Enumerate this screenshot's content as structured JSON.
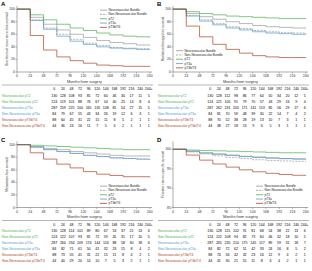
{
  "chart_data": [
    {
      "type": "step",
      "title": "A",
      "xlabel": "Months from surgery",
      "ylabel": "Biochemical recurrence-free survival",
      "x": [
        0,
        24,
        48,
        72,
        96,
        120,
        144,
        168,
        192,
        216,
        240
      ],
      "xlim": [
        0,
        244
      ],
      "xticks": [
        0,
        24,
        48,
        72,
        96,
        120,
        144,
        168,
        192,
        216,
        240
      ],
      "ylim": [
        0,
        105
      ],
      "yticks": [
        0,
        20,
        40,
        60,
        80,
        100
      ],
      "grid": false,
      "legend": "upper right",
      "series": [
        {
          "name": "Neurovascular Bundle",
          "color": "#999999",
          "line_style": "solid",
          "values": [
            100,
            87,
            76,
            67,
            60,
            55,
            50,
            47,
            45,
            43,
            42
          ]
        },
        {
          "name": "Non-Neurovascular Bundle",
          "color": "#999999",
          "line_style": "dashed",
          "values": [
            100,
            83,
            70,
            60,
            52,
            46,
            42,
            39,
            38,
            37,
            36
          ]
        },
        {
          "name": "pT2",
          "color": "#4CAF50",
          "line_style": "solid",
          "values": [
            100,
            91,
            83,
            76,
            70,
            66,
            62,
            59,
            57,
            56,
            55
          ]
        },
        {
          "name": "pT3a",
          "color": "#5599CC",
          "line_style": "solid",
          "values": [
            100,
            82,
            68,
            57,
            49,
            44,
            40,
            38,
            37,
            36,
            35
          ]
        },
        {
          "name": "pT3b/T4",
          "color": "#AA4422",
          "line_style": "solid",
          "values": [
            100,
            58,
            35,
            24,
            18,
            14,
            11,
            10,
            9,
            9,
            8
          ]
        }
      ],
      "risk_table": {
        "columns": [
          "0",
          "24",
          "48",
          "72",
          "96",
          "120",
          "144",
          "168",
          "192",
          "216",
          "240",
          "244+"
        ],
        "rows": [
          {
            "label": "Neurovascular pT2",
            "color": "#4CAF50",
            "values": [
              130,
              128,
              108,
              93,
              81,
              72,
              60,
              46,
              30,
              17,
              11,
              5
            ]
          },
          {
            "label": "Non-Neurovascular pT2",
            "color": "#4CAF50",
            "values": [
              124,
              119,
              101,
              88,
              76,
              67,
              54,
              40,
              25,
              14,
              8,
              4
            ]
          },
          {
            "label": "Neurovascular pT3a",
            "color": "#5599CC",
            "values": [
              287,
              259,
              225,
              200,
              165,
              135,
              108,
              81,
              54,
              27,
              15,
              5
            ]
          },
          {
            "label": "Non-Neurovascular pT3a",
            "color": "#5599CC",
            "values": [
              84,
              79,
              67,
              55,
              43,
              34,
              26,
              19,
              12,
              6,
              3,
              1
            ]
          },
          {
            "label": "Neurovascular pT3b/T4",
            "color": "#AA4422",
            "values": [
              88,
              64,
              45,
              31,
              22,
              15,
              11,
              8,
              5,
              2,
              1,
              1
            ]
          },
          {
            "label": "Non-Neurovascular pT3b/T4",
            "color": "#AA4422",
            "values": [
              44,
              36,
              24,
              16,
              11,
              7,
              5,
              4,
              2,
              1,
              1,
              1
            ]
          }
        ]
      }
    },
    {
      "type": "step",
      "title": "B",
      "xlabel": "Months from surgery",
      "ylabel": "Radiation therapy-free survival",
      "x": [
        0,
        24,
        48,
        72,
        96,
        120,
        144,
        168,
        192,
        216,
        240
      ],
      "xlim": [
        0,
        244
      ],
      "xticks": [
        0,
        24,
        48,
        72,
        96,
        120,
        144,
        168,
        192,
        216,
        240
      ],
      "ylim": [
        0,
        105
      ],
      "yticks": [
        0,
        20,
        40,
        60,
        80,
        100
      ],
      "grid": false,
      "legend": "lower left",
      "series": [
        {
          "name": "Neurovascular Bundle",
          "color": "#999999",
          "line_style": "solid",
          "values": [
            100,
            93,
            88,
            84,
            80,
            77,
            74,
            72,
            71,
            70,
            69
          ]
        },
        {
          "name": "Non-Neurovascular Bundle",
          "color": "#999999",
          "line_style": "dashed",
          "values": [
            100,
            90,
            83,
            77,
            72,
            69,
            66,
            64,
            63,
            62,
            61
          ]
        },
        {
          "name": "pT2",
          "color": "#4CAF50",
          "line_style": "solid",
          "values": [
            100,
            96,
            93,
            91,
            89,
            88,
            87,
            86,
            85,
            85,
            84
          ]
        },
        {
          "name": "pT3a",
          "color": "#5599CC",
          "line_style": "solid",
          "values": [
            100,
            89,
            81,
            75,
            70,
            67,
            64,
            62,
            61,
            60,
            59
          ]
        },
        {
          "name": "pT3b/T4",
          "color": "#AA4422",
          "line_style": "solid",
          "values": [
            100,
            73,
            56,
            44,
            36,
            30,
            26,
            24,
            23,
            23,
            22
          ]
        }
      ],
      "risk_table": {
        "columns": [
          "0",
          "24",
          "48",
          "72",
          "96",
          "120",
          "144",
          "168",
          "192",
          "216",
          "240",
          "244+"
        ],
        "rows": [
          {
            "label": "Neurovascular pT2",
            "color": "#4CAF50",
            "values": [
              130,
              128,
              112,
              98,
              86,
              77,
              64,
              50,
              34,
              20,
              12,
              5
            ]
          },
          {
            "label": "Non-Neurovascular pT2",
            "color": "#4CAF50",
            "values": [
              124,
              121,
              105,
              91,
              79,
              70,
              57,
              43,
              29,
              16,
              9,
              4
            ]
          },
          {
            "label": "Neurovascular pT3a",
            "color": "#5599CC",
            "values": [
              287,
              262,
              231,
              205,
              171,
              141,
              113,
              85,
              56,
              29,
              17,
              6
            ]
          },
          {
            "label": "Non-Neurovascular pT3a",
            "color": "#5599CC",
            "values": [
              84,
              81,
              70,
              59,
              48,
              39,
              30,
              22,
              14,
              7,
              4,
              2
            ]
          },
          {
            "label": "Neurovascular pT3b/T4",
            "color": "#AA4422",
            "values": [
              88,
              70,
              52,
              38,
              28,
              19,
              13,
              10,
              7,
              3,
              1,
              1
            ]
          },
          {
            "label": "Non-Neurovascular pT3b/T4",
            "color": "#AA4422",
            "values": [
              44,
              38,
              27,
              18,
              13,
              9,
              6,
              5,
              3,
              1,
              1,
              1
            ]
          }
        ]
      }
    },
    {
      "type": "step",
      "title": "C",
      "xlabel": "Months from surgery",
      "ylabel": "Metastasis-free survival",
      "x": [
        0,
        24,
        48,
        72,
        96,
        120,
        144,
        168,
        192,
        216,
        240
      ],
      "xlim": [
        0,
        244
      ],
      "xticks": [
        0,
        24,
        48,
        72,
        96,
        120,
        144,
        168,
        192,
        216,
        240
      ],
      "ylim": [
        0,
        105
      ],
      "yticks": [
        0,
        20,
        40,
        60,
        80,
        100
      ],
      "grid": false,
      "legend": "lower right",
      "series": [
        {
          "name": "Neurovascular Bundle",
          "color": "#999999",
          "line_style": "solid",
          "values": [
            100,
            97,
            94,
            92,
            89,
            87,
            85,
            83,
            82,
            82,
            81
          ]
        },
        {
          "name": "Non-Neurovascular Bundle",
          "color": "#999999",
          "line_style": "dashed",
          "values": [
            100,
            96,
            92,
            89,
            86,
            83,
            81,
            79,
            78,
            77,
            76
          ]
        },
        {
          "name": "pT2",
          "color": "#4CAF50",
          "line_style": "solid",
          "values": [
            100,
            99,
            98,
            97,
            96,
            95,
            94,
            93,
            92,
            92,
            91
          ]
        },
        {
          "name": "pT3a",
          "color": "#5599CC",
          "line_style": "solid",
          "values": [
            100,
            96,
            92,
            89,
            86,
            83,
            81,
            79,
            78,
            77,
            76
          ]
        },
        {
          "name": "pT3b/T4",
          "color": "#AA4422",
          "line_style": "solid",
          "values": [
            100,
            87,
            77,
            69,
            63,
            57,
            53,
            51,
            49,
            49,
            48
          ]
        }
      ],
      "risk_table": {
        "columns": [
          "0",
          "24",
          "48",
          "72",
          "96",
          "120",
          "144",
          "168",
          "192",
          "216",
          "240",
          "244+"
        ],
        "rows": [
          {
            "label": "Neurovascular pT2",
            "color": "#4CAF50",
            "values": [
              130,
              128,
              114,
              101,
              89,
              80,
              67,
              53,
              37,
              21,
              13,
              6
            ]
          },
          {
            "label": "Non-Neurovascular pT2",
            "color": "#4CAF50",
            "values": [
              124,
              122,
              107,
              93,
              81,
              72,
              59,
              45,
              31,
              17,
              10,
              5
            ]
          },
          {
            "label": "Neurovascular pT3a",
            "color": "#5599CC",
            "values": [
              287,
              264,
              234,
              209,
              174,
              144,
              116,
              88,
              58,
              30,
              18,
              6
            ]
          },
          {
            "label": "Non-Neurovascular pT3a",
            "color": "#5599CC",
            "values": [
              84,
              82,
              71,
              61,
              50,
              41,
              32,
              23,
              15,
              8,
              4,
              2
            ]
          },
          {
            "label": "Neurovascular pT3b/T4",
            "color": "#AA4422",
            "values": [
              88,
              73,
              55,
              41,
              31,
              22,
              15,
              11,
              8,
              4,
              2,
              1
            ]
          },
          {
            "label": "Non-Neurovascular pT3b/T4",
            "color": "#AA4422",
            "values": [
              44,
              40,
              29,
              20,
              14,
              10,
              7,
              5,
              3,
              2,
              1,
              1
            ]
          }
        ]
      }
    },
    {
      "type": "step",
      "title": "D",
      "xlabel": "Months from surgery",
      "ylabel": "Prostate cancer-specific survival",
      "x": [
        0,
        24,
        48,
        72,
        96,
        120,
        144,
        168,
        192,
        216,
        240
      ],
      "xlim": [
        0,
        244
      ],
      "xticks": [
        0,
        24,
        48,
        72,
        96,
        120,
        144,
        168,
        192,
        216,
        240
      ],
      "ylim": [
        85,
        102
      ],
      "yticks": [
        85,
        90,
        95,
        100
      ],
      "grid": false,
      "legend": "lower right",
      "series": [
        {
          "name": "Neurovascular Bundle",
          "color": "#999999",
          "line_style": "solid",
          "values": [
            100,
            99.5,
            99.1,
            98.8,
            98.5,
            98.2,
            98.0,
            97.8,
            97.6,
            97.5,
            97.4
          ]
        },
        {
          "name": "Non-Neurovascular Bundle",
          "color": "#999999",
          "line_style": "dashed",
          "values": [
            100,
            99.3,
            98.8,
            98.3,
            97.9,
            97.6,
            97.3,
            97.1,
            97.0,
            96.9,
            96.8
          ]
        },
        {
          "name": "pT2",
          "color": "#4CAF50",
          "line_style": "solid",
          "values": [
            100,
            99.8,
            99.7,
            99.6,
            99.5,
            99.4,
            99.3,
            99.2,
            99.1,
            99.1,
            99.0
          ]
        },
        {
          "name": "pT3a",
          "color": "#5599CC",
          "line_style": "solid",
          "values": [
            100,
            99.5,
            99.0,
            98.7,
            98.4,
            98.1,
            97.9,
            97.7,
            97.6,
            97.5,
            97.4
          ]
        },
        {
          "name": "pT3b/T4",
          "color": "#AA4422",
          "line_style": "solid",
          "values": [
            100,
            98.5,
            97.2,
            96.2,
            95.4,
            94.7,
            94.2,
            93.8,
            93.5,
            93.3,
            93.2
          ]
        }
      ],
      "risk_table": {
        "columns": [
          "0",
          "24",
          "48",
          "72",
          "96",
          "120",
          "144",
          "168",
          "192",
          "216",
          "240",
          "244+"
        ],
        "rows": [
          {
            "label": "Neurovascular pT2",
            "color": "#4CAF50",
            "values": [
              130,
              128,
              115,
              102,
              91,
              81,
              68,
              54,
              38,
              22,
              13,
              6
            ]
          },
          {
            "label": "Non-Neurovascular pT2",
            "color": "#4CAF50",
            "values": [
              124,
              122,
              108,
              94,
              82,
              73,
              60,
              46,
              32,
              18,
              10,
              5
            ]
          },
          {
            "label": "Neurovascular pT3a",
            "color": "#5599CC",
            "values": [
              287,
              265,
              235,
              210,
              175,
              145,
              117,
              89,
              59,
              31,
              18,
              7
            ]
          },
          {
            "label": "Non-Neurovascular pT3a",
            "color": "#5599CC",
            "values": [
              84,
              82,
              72,
              62,
              51,
              42,
              33,
              24,
              16,
              8,
              5,
              2
            ]
          },
          {
            "label": "Neurovascular pT3b/T4",
            "color": "#AA4422",
            "values": [
              88,
              74,
              56,
              42,
              32,
              23,
              16,
              12,
              9,
              4,
              2,
              1
            ]
          },
          {
            "label": "Non-Neurovascular pT3b/T4",
            "color": "#AA4422",
            "values": [
              44,
              41,
              30,
              21,
              15,
              11,
              8,
              6,
              4,
              2,
              1,
              1
            ]
          }
        ]
      }
    }
  ]
}
